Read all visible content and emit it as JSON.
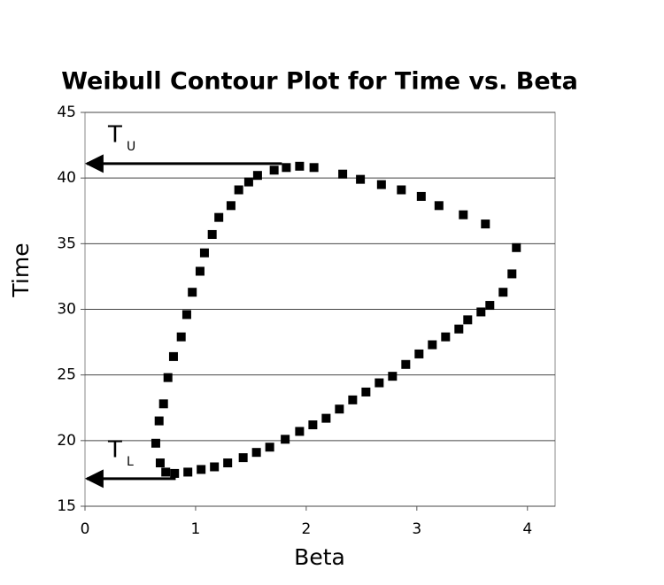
{
  "chart_data": {
    "type": "scatter",
    "title": "Weibull Contour Plot for Time vs. Beta",
    "x_label": "Beta",
    "y_label": "Time",
    "xlim": [
      0,
      4.25
    ],
    "ylim": [
      15,
      45
    ],
    "xticks": [
      0,
      1,
      2,
      3,
      4
    ],
    "yticks": [
      15,
      20,
      25,
      30,
      35,
      40,
      45
    ],
    "grid": true,
    "color": "#000000",
    "x": [
      0.68,
      0.64,
      0.67,
      0.71,
      0.75,
      0.8,
      0.87,
      0.92,
      0.97,
      1.04,
      1.08,
      1.15,
      1.21,
      1.32,
      1.39,
      1.48,
      1.56,
      1.71,
      1.82,
      1.94,
      2.07,
      2.33,
      2.49,
      2.68,
      2.86,
      3.04,
      3.2,
      3.42,
      3.62,
      3.9,
      3.86,
      3.78,
      3.66,
      3.58,
      3.46,
      3.38,
      3.26,
      3.14,
      3.02,
      2.9,
      2.78,
      2.66,
      2.54,
      2.42,
      2.3,
      2.18,
      2.06,
      1.94,
      1.81,
      1.67,
      1.55,
      1.43,
      1.29,
      1.17,
      1.05,
      0.93,
      0.81,
      0.73
    ],
    "y": [
      18.3,
      19.8,
      21.5,
      22.8,
      24.8,
      26.4,
      27.9,
      29.6,
      31.3,
      32.9,
      34.3,
      35.7,
      37.0,
      37.9,
      39.1,
      39.7,
      40.2,
      40.6,
      40.8,
      40.9,
      40.8,
      40.3,
      39.9,
      39.5,
      39.1,
      38.6,
      37.9,
      37.2,
      36.5,
      34.7,
      32.7,
      31.3,
      30.3,
      29.8,
      29.2,
      28.5,
      27.9,
      27.3,
      26.6,
      25.8,
      24.9,
      24.4,
      23.7,
      23.1,
      22.4,
      21.7,
      21.2,
      20.7,
      20.1,
      19.5,
      19.1,
      18.7,
      18.3,
      18.0,
      17.8,
      17.6,
      17.5,
      17.6
    ],
    "annotations": [
      {
        "text": "T",
        "sub": "U",
        "y": 41.1,
        "x_start": 1.78
      },
      {
        "text": "T",
        "sub": "L",
        "y": 17.1,
        "x_start": 0.82
      }
    ]
  }
}
